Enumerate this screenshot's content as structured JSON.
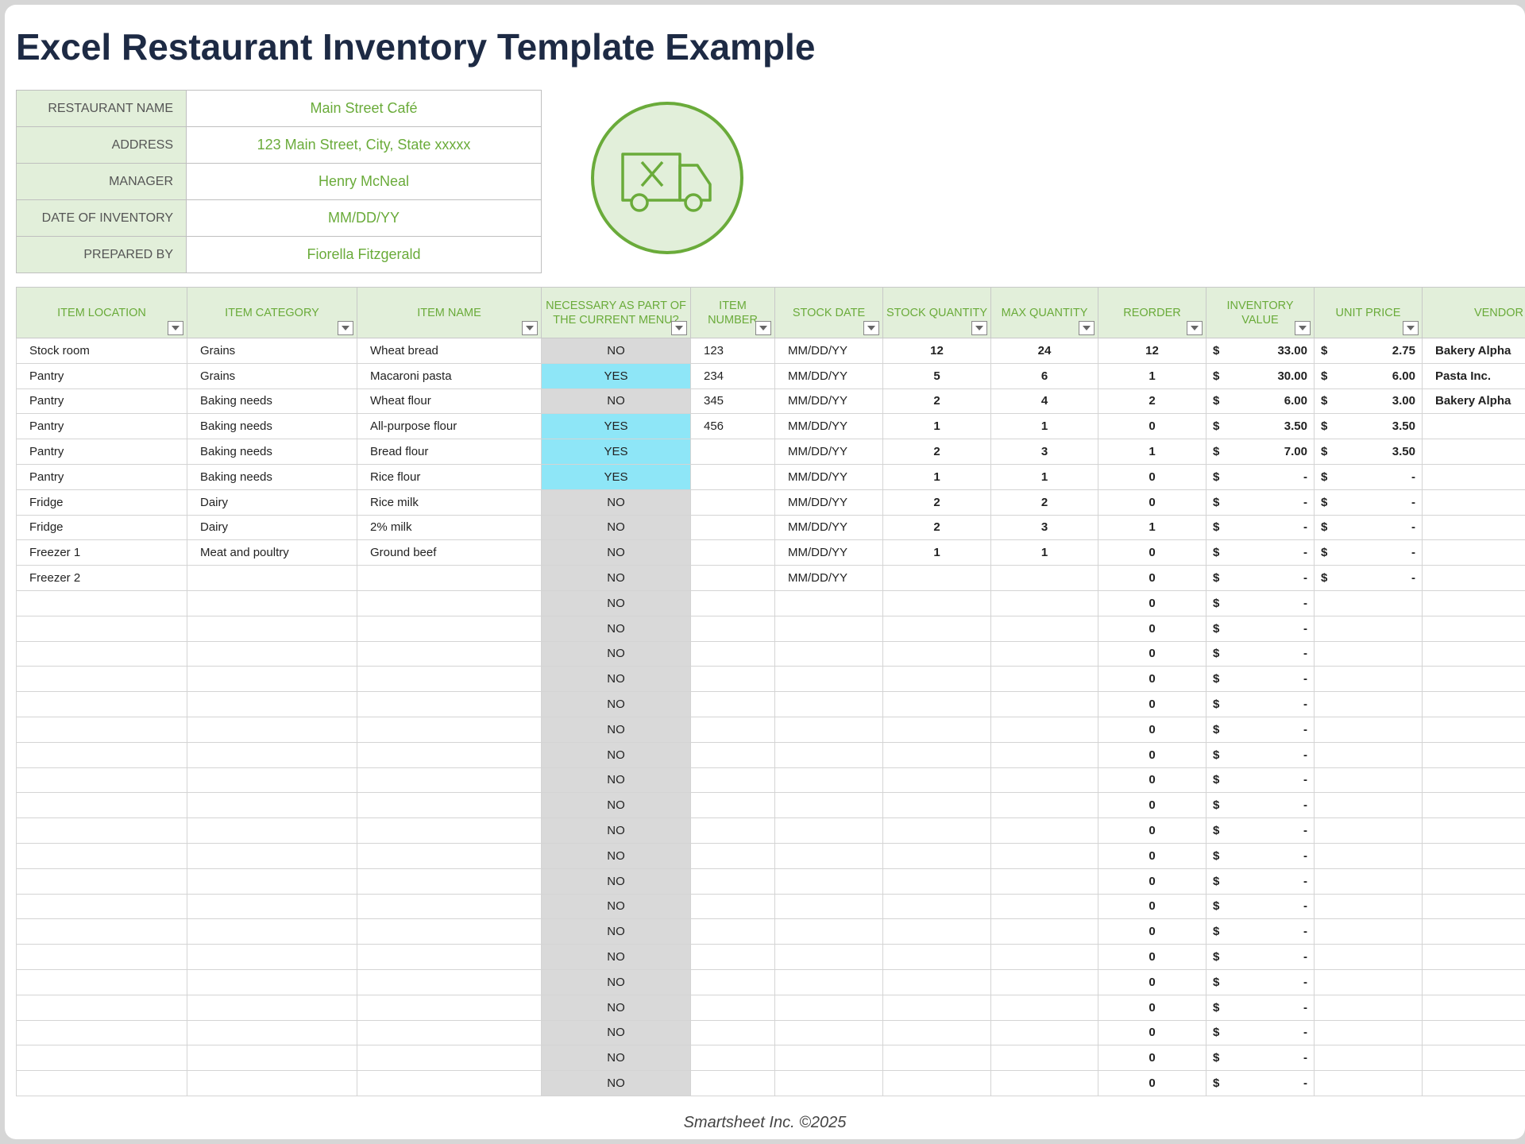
{
  "header": {
    "title": "Excel Restaurant Inventory Template Example"
  },
  "info": [
    {
      "label": "RESTAURANT NAME",
      "value": "Main Street Café"
    },
    {
      "label": "ADDRESS",
      "value": "123 Main Street, City, State xxxxx"
    },
    {
      "label": "MANAGER",
      "value": "Henry McNeal"
    },
    {
      "label": "DATE OF INVENTORY",
      "value": "MM/DD/YY"
    },
    {
      "label": "PREPARED BY",
      "value": "Fiorella Fitzgerald"
    }
  ],
  "table": {
    "columns": [
      "ITEM LOCATION",
      "ITEM CATEGORY",
      "ITEM NAME",
      "NECESSARY AS PART OF THE CURRENT MENU?",
      "ITEM NUMBER",
      "STOCK DATE",
      "STOCK QUANTITY",
      "MAX QUANTITY",
      "REORDER",
      "INVENTORY VALUE",
      "UNIT PRICE",
      "VENDOR"
    ],
    "rows": [
      [
        "Stock room",
        "Grains",
        "Wheat bread",
        "NO",
        "123",
        "MM/DD/YY",
        "12",
        "24",
        "12",
        {
          "symbol": "$",
          "amount": "33.00"
        },
        {
          "symbol": "$",
          "amount": "2.75"
        },
        "Bakery Alpha"
      ],
      [
        "Pantry",
        "Grains",
        "Macaroni pasta",
        "YES",
        "234",
        "MM/DD/YY",
        "5",
        "6",
        "1",
        {
          "symbol": "$",
          "amount": "30.00"
        },
        {
          "symbol": "$",
          "amount": "6.00"
        },
        "Pasta Inc."
      ],
      [
        "Pantry",
        "Baking needs",
        "Wheat flour",
        "NO",
        "345",
        "MM/DD/YY",
        "2",
        "4",
        "2",
        {
          "symbol": "$",
          "amount": "6.00"
        },
        {
          "symbol": "$",
          "amount": "3.00"
        },
        "Bakery Alpha"
      ],
      [
        "Pantry",
        "Baking needs",
        "All-purpose flour",
        "YES",
        "456",
        "MM/DD/YY",
        "1",
        "1",
        "0",
        {
          "symbol": "$",
          "amount": "3.50"
        },
        {
          "symbol": "$",
          "amount": "3.50"
        },
        null
      ],
      [
        "Pantry",
        "Baking needs",
        "Bread flour",
        "YES",
        null,
        "MM/DD/YY",
        "2",
        "3",
        "1",
        {
          "symbol": "$",
          "amount": "7.00"
        },
        {
          "symbol": "$",
          "amount": "3.50"
        },
        null
      ],
      [
        "Pantry",
        "Baking needs",
        "Rice flour",
        "YES",
        null,
        "MM/DD/YY",
        "1",
        "1",
        "0",
        {
          "symbol": "$",
          "amount": "-"
        },
        {
          "symbol": "$",
          "amount": "-"
        },
        null
      ],
      [
        "Fridge",
        "Dairy",
        "Rice milk",
        "NO",
        null,
        "MM/DD/YY",
        "2",
        "2",
        "0",
        {
          "symbol": "$",
          "amount": "-"
        },
        {
          "symbol": "$",
          "amount": "-"
        },
        null
      ],
      [
        "Fridge",
        "Dairy",
        "2% milk",
        "NO",
        null,
        "MM/DD/YY",
        "2",
        "3",
        "1",
        {
          "symbol": "$",
          "amount": "-"
        },
        {
          "symbol": "$",
          "amount": "-"
        },
        null
      ],
      [
        "Freezer 1",
        "Meat and poultry",
        "Ground beef",
        "NO",
        null,
        "MM/DD/YY",
        "1",
        "1",
        "0",
        {
          "symbol": "$",
          "amount": "-"
        },
        {
          "symbol": "$",
          "amount": "-"
        },
        null
      ],
      [
        "Freezer 2",
        null,
        null,
        "NO",
        null,
        "MM/DD/YY",
        null,
        null,
        "0",
        {
          "symbol": "$",
          "amount": "-"
        },
        {
          "symbol": "$",
          "amount": "-"
        },
        null
      ],
      [
        null,
        null,
        null,
        "NO",
        null,
        null,
        null,
        null,
        "0",
        {
          "symbol": "$",
          "amount": "-"
        },
        null,
        null
      ],
      [
        null,
        null,
        null,
        "NO",
        null,
        null,
        null,
        null,
        "0",
        {
          "symbol": "$",
          "amount": "-"
        },
        null,
        null
      ],
      [
        null,
        null,
        null,
        "NO",
        null,
        null,
        null,
        null,
        "0",
        {
          "symbol": "$",
          "amount": "-"
        },
        null,
        null
      ],
      [
        null,
        null,
        null,
        "NO",
        null,
        null,
        null,
        null,
        "0",
        {
          "symbol": "$",
          "amount": "-"
        },
        null,
        null
      ],
      [
        null,
        null,
        null,
        "NO",
        null,
        null,
        null,
        null,
        "0",
        {
          "symbol": "$",
          "amount": "-"
        },
        null,
        null
      ],
      [
        null,
        null,
        null,
        "NO",
        null,
        null,
        null,
        null,
        "0",
        {
          "symbol": "$",
          "amount": "-"
        },
        null,
        null
      ],
      [
        null,
        null,
        null,
        "NO",
        null,
        null,
        null,
        null,
        "0",
        {
          "symbol": "$",
          "amount": "-"
        },
        null,
        null
      ],
      [
        null,
        null,
        null,
        "NO",
        null,
        null,
        null,
        null,
        "0",
        {
          "symbol": "$",
          "amount": "-"
        },
        null,
        null
      ],
      [
        null,
        null,
        null,
        "NO",
        null,
        null,
        null,
        null,
        "0",
        {
          "symbol": "$",
          "amount": "-"
        },
        null,
        null
      ],
      [
        null,
        null,
        null,
        "NO",
        null,
        null,
        null,
        null,
        "0",
        {
          "symbol": "$",
          "amount": "-"
        },
        null,
        null
      ],
      [
        null,
        null,
        null,
        "NO",
        null,
        null,
        null,
        null,
        "0",
        {
          "symbol": "$",
          "amount": "-"
        },
        null,
        null
      ],
      [
        null,
        null,
        null,
        "NO",
        null,
        null,
        null,
        null,
        "0",
        {
          "symbol": "$",
          "amount": "-"
        },
        null,
        null
      ],
      [
        null,
        null,
        null,
        "NO",
        null,
        null,
        null,
        null,
        "0",
        {
          "symbol": "$",
          "amount": "-"
        },
        null,
        null
      ],
      [
        null,
        null,
        null,
        "NO",
        null,
        null,
        null,
        null,
        "0",
        {
          "symbol": "$",
          "amount": "-"
        },
        null,
        null
      ],
      [
        null,
        null,
        null,
        "NO",
        null,
        null,
        null,
        null,
        "0",
        {
          "symbol": "$",
          "amount": "-"
        },
        null,
        null
      ],
      [
        null,
        null,
        null,
        "NO",
        null,
        null,
        null,
        null,
        "0",
        {
          "symbol": "$",
          "amount": "-"
        },
        null,
        null
      ],
      [
        null,
        null,
        null,
        "NO",
        null,
        null,
        null,
        null,
        "0",
        {
          "symbol": "$",
          "amount": "-"
        },
        null,
        null
      ],
      [
        null,
        null,
        null,
        "NO",
        null,
        null,
        null,
        null,
        "0",
        {
          "symbol": "$",
          "amount": "-"
        },
        null,
        null
      ],
      [
        null,
        null,
        null,
        "NO",
        null,
        null,
        null,
        null,
        "0",
        {
          "symbol": "$",
          "amount": "-"
        },
        null,
        null
      ],
      [
        null,
        null,
        null,
        "NO",
        null,
        null,
        null,
        null,
        "0",
        {
          "symbol": "$",
          "amount": "-"
        },
        null,
        null
      ]
    ]
  },
  "footer": {
    "credit": "Smartsheet Inc. ©2025"
  }
}
